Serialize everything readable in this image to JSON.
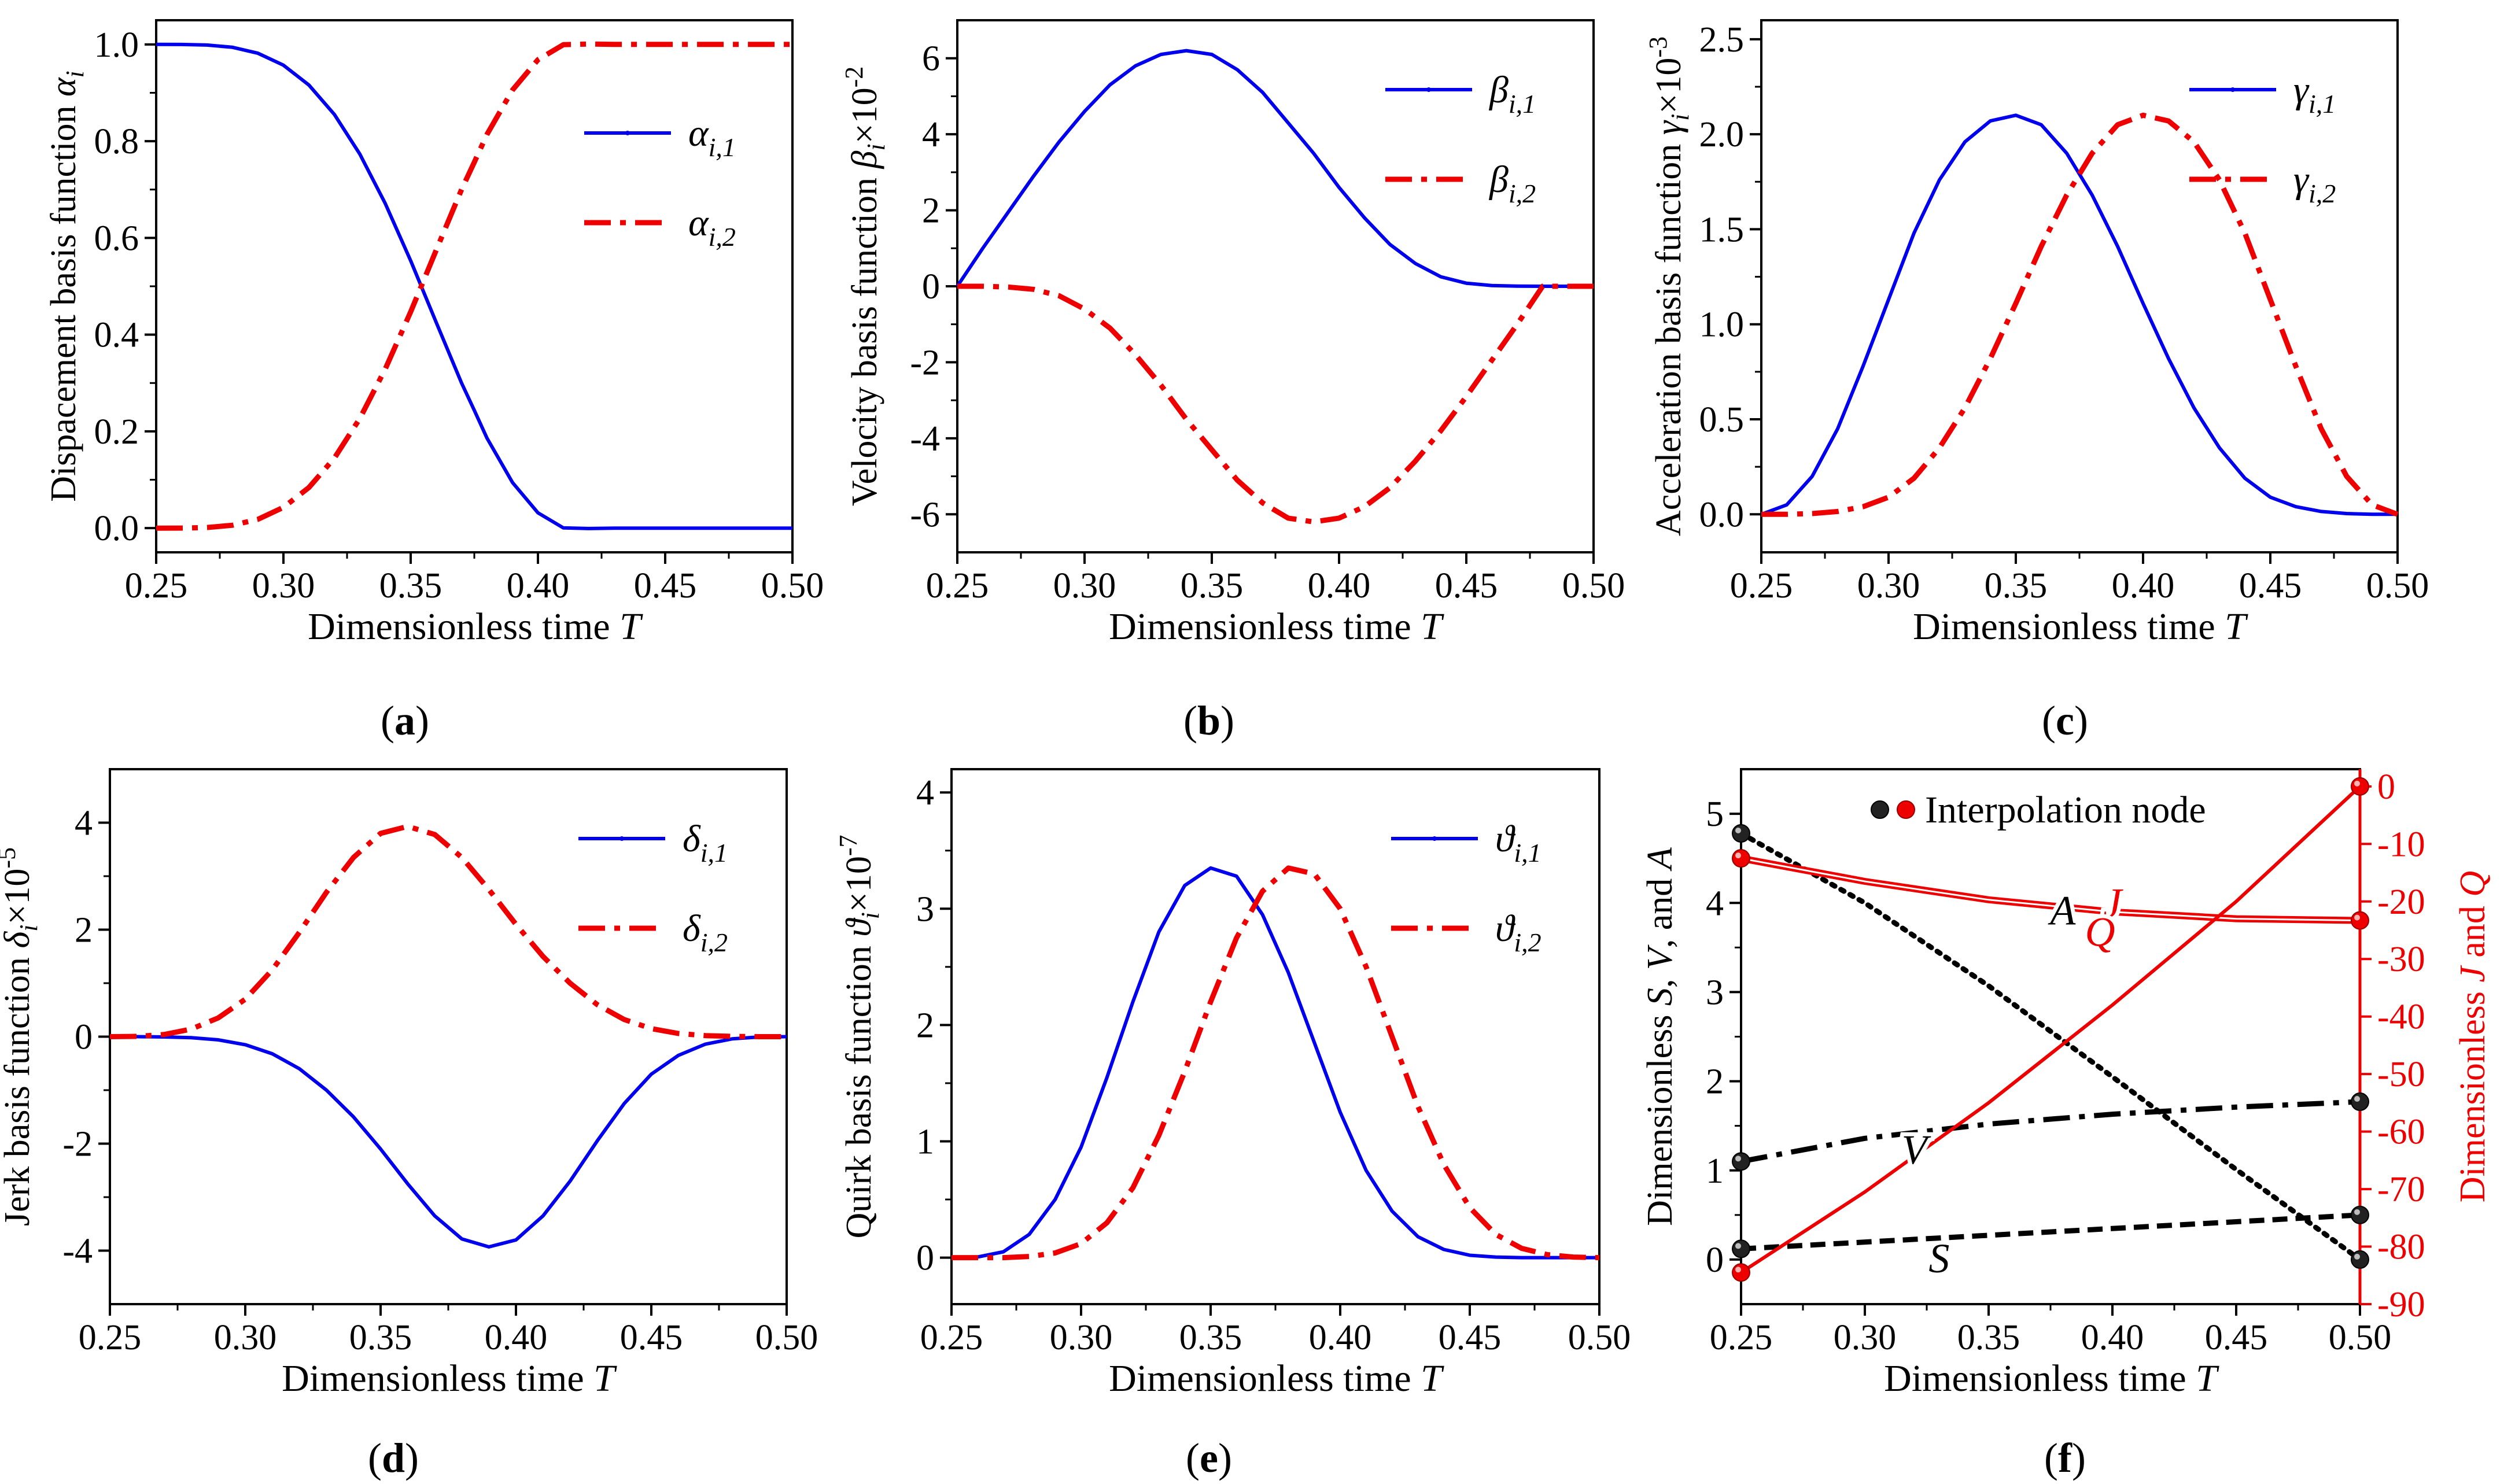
{
  "colors": {
    "blue": "#0000ee",
    "red": "#ee0000",
    "black": "#000000"
  },
  "chart_data": [
    {
      "type": "line",
      "panel": "a",
      "caption_letter": "a",
      "ylabel": "Dispacement basis function α",
      "ylabel_sub": "i",
      "xlabel": "Dimensionless time",
      "xlabel_var": "T",
      "xlim": [
        0.25,
        0.5
      ],
      "ylim": [
        -0.05,
        1.05
      ],
      "xticks": [
        0.25,
        0.3,
        0.35,
        0.4,
        0.45,
        0.5
      ],
      "xtick_labels": [
        "0.25",
        "0.30",
        "0.35",
        "0.40",
        "0.45",
        "0.50"
      ],
      "yticks": [
        0.0,
        0.2,
        0.4,
        0.6,
        0.8,
        1.0
      ],
      "ytick_labels": [
        "0.0",
        "0.2",
        "0.4",
        "0.6",
        "0.8",
        "1.0"
      ],
      "legend_position": "right-middle",
      "series": [
        {
          "name": "α",
          "sub": "i,1",
          "color": "blue",
          "style": "solid",
          "x": [
            0.25,
            0.26,
            0.27,
            0.28,
            0.29,
            0.3,
            0.31,
            0.32,
            0.33,
            0.34,
            0.35,
            0.36,
            0.37,
            0.375,
            0.38,
            0.39,
            0.4,
            0.41,
            0.42,
            0.43,
            0.44,
            0.45,
            0.46,
            0.47,
            0.48,
            0.49,
            0.5
          ],
          "y": [
            1.0,
            0.9999,
            0.9987,
            0.994,
            0.9817,
            0.9571,
            0.9161,
            0.8554,
            0.7734,
            0.6712,
            0.5529,
            0.4258,
            0.2998,
            0.2435,
            0.1859,
            0.0943,
            0.0317,
            0.0005,
            -0.0008,
            0,
            0,
            0,
            0,
            0,
            0,
            0,
            0
          ]
        },
        {
          "name": "α",
          "sub": "i,2",
          "color": "red",
          "style": "dashdot",
          "x": [
            0.25,
            0.26,
            0.27,
            0.28,
            0.29,
            0.3,
            0.31,
            0.32,
            0.33,
            0.34,
            0.35,
            0.36,
            0.37,
            0.375,
            0.38,
            0.39,
            0.4,
            0.41,
            0.42,
            0.43,
            0.44,
            0.45,
            0.46,
            0.47,
            0.48,
            0.49,
            0.5
          ],
          "y": [
            0,
            0.0001,
            0.0013,
            0.006,
            0.0183,
            0.0429,
            0.0839,
            0.1446,
            0.2266,
            0.3288,
            0.4471,
            0.5742,
            0.7002,
            0.7565,
            0.8141,
            0.9057,
            0.9683,
            0.9995,
            1.0008,
            1.0,
            1.0,
            1.0,
            1.0,
            1.0,
            1.0,
            1.0,
            1.0
          ]
        }
      ]
    },
    {
      "type": "line",
      "panel": "b",
      "caption_letter": "b",
      "ylabel": "Velocity basis function β",
      "ylabel_sub": "i",
      "ylabel_suffix": "×10",
      "ylabel_exp": "-2",
      "xlabel": "Dimensionless time",
      "xlabel_var": "T",
      "xlim": [
        0.25,
        0.5
      ],
      "ylim": [
        -7,
        7
      ],
      "xticks": [
        0.25,
        0.3,
        0.35,
        0.4,
        0.45,
        0.5
      ],
      "xtick_labels": [
        "0.25",
        "0.30",
        "0.35",
        "0.40",
        "0.45",
        "0.50"
      ],
      "yticks": [
        -6,
        -4,
        -2,
        0,
        2,
        4,
        6
      ],
      "ytick_labels": [
        "-6",
        "-4",
        "-2",
        "0",
        "2",
        "4",
        "6"
      ],
      "legend_position": "top-right",
      "series": [
        {
          "name": "β",
          "sub": "i,1",
          "color": "blue",
          "style": "solid",
          "x": [
            0.25,
            0.26,
            0.27,
            0.28,
            0.29,
            0.3,
            0.31,
            0.32,
            0.33,
            0.34,
            0.35,
            0.36,
            0.37,
            0.38,
            0.39,
            0.4,
            0.41,
            0.42,
            0.43,
            0.44,
            0.45,
            0.46,
            0.47,
            0.48,
            0.49,
            0.5
          ],
          "y": [
            0,
            1.0,
            1.95,
            2.9,
            3.8,
            4.6,
            5.3,
            5.8,
            6.1,
            6.2,
            6.1,
            5.7,
            5.1,
            4.3,
            3.5,
            2.6,
            1.8,
            1.1,
            0.6,
            0.25,
            0.08,
            0.02,
            0.005,
            0,
            0,
            0
          ]
        },
        {
          "name": "β",
          "sub": "i,2",
          "color": "red",
          "style": "dashdot",
          "x": [
            0.25,
            0.26,
            0.27,
            0.28,
            0.29,
            0.3,
            0.31,
            0.32,
            0.33,
            0.34,
            0.35,
            0.36,
            0.37,
            0.38,
            0.39,
            0.4,
            0.41,
            0.42,
            0.43,
            0.44,
            0.45,
            0.46,
            0.47,
            0.48,
            0.49,
            0.5
          ],
          "y": [
            0,
            0,
            -0.02,
            -0.08,
            -0.25,
            -0.6,
            -1.1,
            -1.8,
            -2.6,
            -3.5,
            -4.3,
            -5.1,
            -5.7,
            -6.1,
            -6.2,
            -6.1,
            -5.8,
            -5.3,
            -4.6,
            -3.8,
            -2.9,
            -1.95,
            -1.0,
            0,
            0,
            0
          ]
        }
      ]
    },
    {
      "type": "line",
      "panel": "c",
      "caption_letter": "c",
      "ylabel": "Acceleration basis function γ",
      "ylabel_sub": "i",
      "ylabel_suffix": "×10",
      "ylabel_exp": "-3",
      "xlabel": "Dimensionless time",
      "xlabel_var": "T",
      "xlim": [
        0.25,
        0.5
      ],
      "ylim": [
        -0.2,
        2.6
      ],
      "xticks": [
        0.25,
        0.3,
        0.35,
        0.4,
        0.45,
        0.5
      ],
      "xtick_labels": [
        "0.25",
        "0.30",
        "0.35",
        "0.40",
        "0.45",
        "0.50"
      ],
      "yticks": [
        0.0,
        0.5,
        1.0,
        1.5,
        2.0,
        2.5
      ],
      "ytick_labels": [
        "0.0",
        "0.5",
        "1.0",
        "1.5",
        "2.0",
        "2.5"
      ],
      "legend_position": "top-right",
      "series": [
        {
          "name": "γ",
          "sub": "i,1",
          "color": "blue",
          "style": "solid",
          "x": [
            0.25,
            0.26,
            0.27,
            0.28,
            0.29,
            0.3,
            0.31,
            0.32,
            0.33,
            0.34,
            0.35,
            0.36,
            0.37,
            0.38,
            0.39,
            0.4,
            0.41,
            0.42,
            0.43,
            0.44,
            0.45,
            0.46,
            0.47,
            0.48,
            0.49,
            0.5
          ],
          "y": [
            0,
            0.05,
            0.2,
            0.45,
            0.78,
            1.13,
            1.48,
            1.76,
            1.96,
            2.07,
            2.1,
            2.05,
            1.9,
            1.68,
            1.41,
            1.11,
            0.82,
            0.56,
            0.35,
            0.19,
            0.09,
            0.04,
            0.015,
            0.004,
            0,
            0
          ]
        },
        {
          "name": "γ",
          "sub": "i,2",
          "color": "red",
          "style": "dashdot",
          "x": [
            0.25,
            0.26,
            0.27,
            0.28,
            0.29,
            0.3,
            0.31,
            0.32,
            0.33,
            0.34,
            0.35,
            0.36,
            0.37,
            0.38,
            0.39,
            0.4,
            0.41,
            0.42,
            0.43,
            0.44,
            0.45,
            0.46,
            0.47,
            0.48,
            0.49,
            0.5
          ],
          "y": [
            0,
            0,
            0.004,
            0.015,
            0.04,
            0.09,
            0.19,
            0.35,
            0.56,
            0.82,
            1.11,
            1.41,
            1.68,
            1.9,
            2.05,
            2.1,
            2.07,
            1.96,
            1.76,
            1.48,
            1.13,
            0.78,
            0.45,
            0.2,
            0.05,
            0
          ]
        }
      ]
    },
    {
      "type": "line",
      "panel": "d",
      "caption_letter": "d",
      "ylabel": "Jerk basis function δ",
      "ylabel_sub": "i",
      "ylabel_suffix": "×10",
      "ylabel_exp": "-5",
      "xlabel": "Dimensionless time",
      "xlabel_var": "T",
      "xlim": [
        0.25,
        0.5
      ],
      "ylim": [
        -5,
        5
      ],
      "xticks": [
        0.25,
        0.3,
        0.35,
        0.4,
        0.45,
        0.5
      ],
      "xtick_labels": [
        "0.25",
        "0.30",
        "0.35",
        "0.40",
        "0.45",
        "0.50"
      ],
      "yticks": [
        -4,
        -2,
        0,
        2,
        4
      ],
      "ytick_labels": [
        "-4",
        "-2",
        "0",
        "2",
        "4"
      ],
      "legend_position": "top-right",
      "series": [
        {
          "name": "δ",
          "sub": "i,1",
          "color": "blue",
          "style": "solid",
          "x": [
            0.25,
            0.26,
            0.27,
            0.28,
            0.29,
            0.3,
            0.31,
            0.32,
            0.33,
            0.34,
            0.35,
            0.36,
            0.37,
            0.38,
            0.39,
            0.4,
            0.41,
            0.42,
            0.43,
            0.44,
            0.45,
            0.46,
            0.47,
            0.48,
            0.49,
            0.5
          ],
          "y": [
            0,
            0,
            -0.005,
            -0.02,
            -0.06,
            -0.15,
            -0.32,
            -0.6,
            -1.0,
            -1.5,
            -2.1,
            -2.75,
            -3.35,
            -3.78,
            -3.93,
            -3.8,
            -3.35,
            -2.7,
            -1.95,
            -1.25,
            -0.7,
            -0.35,
            -0.14,
            -0.04,
            -0.005,
            0
          ]
        },
        {
          "name": "δ",
          "sub": "i,2",
          "color": "red",
          "style": "dashdot",
          "x": [
            0.25,
            0.26,
            0.27,
            0.28,
            0.29,
            0.3,
            0.31,
            0.32,
            0.33,
            0.34,
            0.35,
            0.36,
            0.37,
            0.38,
            0.39,
            0.4,
            0.41,
            0.42,
            0.43,
            0.44,
            0.45,
            0.46,
            0.47,
            0.48,
            0.49,
            0.5
          ],
          "y": [
            0,
            0.005,
            0.04,
            0.14,
            0.35,
            0.7,
            1.25,
            1.95,
            2.7,
            3.35,
            3.8,
            3.93,
            3.78,
            3.35,
            2.75,
            2.1,
            1.5,
            1.0,
            0.6,
            0.32,
            0.15,
            0.06,
            0.02,
            0.005,
            0,
            0
          ]
        }
      ]
    },
    {
      "type": "line",
      "panel": "e",
      "caption_letter": "e",
      "ylabel": "Quirk basis function ϑ",
      "ylabel_sub": "i",
      "ylabel_suffix": "×10",
      "ylabel_exp": "-7",
      "xlabel": "Dimensionless time",
      "xlabel_var": "T",
      "xlim": [
        0.25,
        0.5
      ],
      "ylim": [
        -0.4,
        4.2
      ],
      "xticks": [
        0.25,
        0.3,
        0.35,
        0.4,
        0.45,
        0.5
      ],
      "xtick_labels": [
        "0.25",
        "0.30",
        "0.35",
        "0.40",
        "0.45",
        "0.50"
      ],
      "yticks": [
        0,
        1,
        2,
        3,
        4
      ],
      "ytick_labels": [
        "0",
        "1",
        "2",
        "3",
        "4"
      ],
      "legend_position": "top-right",
      "series": [
        {
          "name": "ϑ",
          "sub": "i,1",
          "color": "blue",
          "style": "solid",
          "x": [
            0.25,
            0.26,
            0.27,
            0.28,
            0.29,
            0.3,
            0.31,
            0.32,
            0.33,
            0.34,
            0.35,
            0.36,
            0.37,
            0.38,
            0.39,
            0.4,
            0.41,
            0.42,
            0.43,
            0.44,
            0.45,
            0.46,
            0.47,
            0.48,
            0.49,
            0.5
          ],
          "y": [
            0,
            0.005,
            0.05,
            0.2,
            0.5,
            0.95,
            1.55,
            2.2,
            2.8,
            3.2,
            3.35,
            3.28,
            2.95,
            2.45,
            1.85,
            1.25,
            0.75,
            0.4,
            0.18,
            0.07,
            0.02,
            0.005,
            0,
            0,
            0,
            0
          ]
        },
        {
          "name": "ϑ",
          "sub": "i,2",
          "color": "red",
          "style": "dashdot",
          "x": [
            0.25,
            0.26,
            0.27,
            0.28,
            0.29,
            0.3,
            0.31,
            0.32,
            0.33,
            0.34,
            0.35,
            0.36,
            0.37,
            0.38,
            0.39,
            0.4,
            0.41,
            0.42,
            0.43,
            0.44,
            0.45,
            0.46,
            0.47,
            0.48,
            0.49,
            0.5
          ],
          "y": [
            0,
            0,
            0,
            0.01,
            0.04,
            0.12,
            0.3,
            0.6,
            1.05,
            1.6,
            2.2,
            2.75,
            3.15,
            3.35,
            3.3,
            3.0,
            2.5,
            1.9,
            1.3,
            0.8,
            0.43,
            0.2,
            0.08,
            0.025,
            0.005,
            0
          ]
        }
      ]
    },
    {
      "type": "line",
      "panel": "f",
      "caption_letter": "f",
      "ylabel_left": "Dimensionless S, V, and A",
      "ylabel_left_parts": [
        "Dimensionless ",
        "S",
        ", ",
        "V",
        ", and ",
        "A"
      ],
      "ylabel_right": "Dimensionless J and Q",
      "ylabel_right_parts": [
        "Dimensionless ",
        "J",
        " and ",
        "Q"
      ],
      "xlabel": "Dimensionless time",
      "xlabel_var": "T",
      "xlim": [
        0.25,
        0.5
      ],
      "ylim_left": [
        -0.5,
        5.5
      ],
      "ylim_right": [
        -90,
        3
      ],
      "xticks": [
        0.25,
        0.3,
        0.35,
        0.4,
        0.45,
        0.5
      ],
      "xtick_labels": [
        "0.25",
        "0.30",
        "0.35",
        "0.40",
        "0.45",
        "0.50"
      ],
      "yticks_left": [
        0,
        1,
        2,
        3,
        4,
        5
      ],
      "ytick_labels_left": [
        "0",
        "1",
        "2",
        "3",
        "4",
        "5"
      ],
      "yticks_right": [
        0,
        -10,
        -20,
        -30,
        -40,
        -50,
        -60,
        -70,
        -80,
        -90
      ],
      "ytick_labels_right": [
        "0",
        "-10",
        "-20",
        "-30",
        "-40",
        "-50",
        "-60",
        "-70",
        "-80",
        "-90"
      ],
      "legend_label": "Interpolation node",
      "series": [
        {
          "name": "S",
          "axis": "left",
          "color": "black",
          "style": "dashed",
          "nodes": "black",
          "x": [
            0.25,
            0.5
          ],
          "y": [
            0.12,
            0.5
          ]
        },
        {
          "name": "V",
          "axis": "left",
          "color": "black",
          "style": "dashdot",
          "nodes": "black",
          "x": [
            0.25,
            0.3,
            0.35,
            0.4,
            0.45,
            0.5
          ],
          "y": [
            1.1,
            1.36,
            1.52,
            1.63,
            1.71,
            1.77
          ]
        },
        {
          "name": "A",
          "axis": "left",
          "color": "black",
          "style": "dotted",
          "nodes": "black",
          "x": [
            0.25,
            0.3,
            0.35,
            0.4,
            0.45,
            0.5
          ],
          "y": [
            4.78,
            4.0,
            3.07,
            2.05,
            1.01,
            0.0
          ]
        },
        {
          "name": "J",
          "axis": "right",
          "color": "red",
          "style": "double",
          "nodes": "red",
          "x": [
            0.25,
            0.3,
            0.35,
            0.4,
            0.45,
            0.5
          ],
          "y": [
            -12.5,
            -16.5,
            -19.7,
            -21.8,
            -23.0,
            -23.3
          ]
        },
        {
          "name": "Q",
          "axis": "right",
          "color": "red",
          "style": "solid",
          "nodes": "red",
          "x": [
            0.25,
            0.3,
            0.35,
            0.4,
            0.45,
            0.5
          ],
          "y": [
            -84.5,
            -70.5,
            -55,
            -38,
            -20,
            0
          ]
        }
      ]
    }
  ]
}
